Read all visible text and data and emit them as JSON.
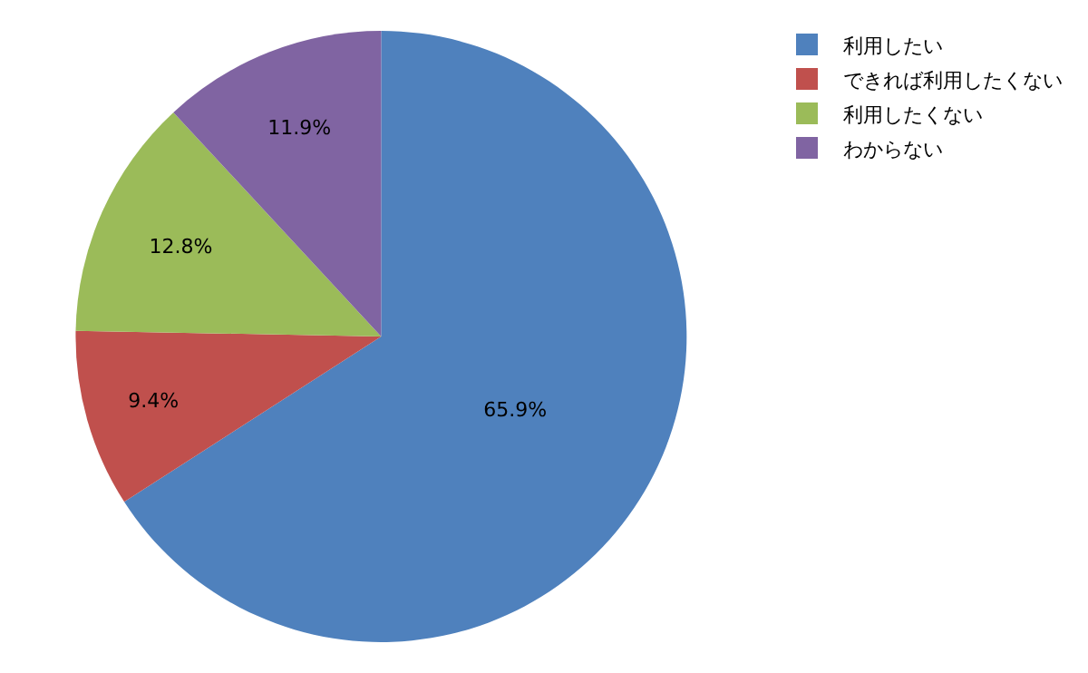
{
  "chart_data": {
    "type": "pie",
    "categories": [
      "利用したい",
      "できれば利用したくない",
      "利用したくない",
      "わからない"
    ],
    "values": [
      65.9,
      9.4,
      12.8,
      11.9
    ],
    "colors": [
      "#4f81bd",
      "#c0504d",
      "#9bbb59",
      "#8064a2"
    ],
    "value_labels": [
      "65.9%",
      "9.4%",
      "12.8%",
      "11.9%"
    ],
    "legend": "top right"
  }
}
